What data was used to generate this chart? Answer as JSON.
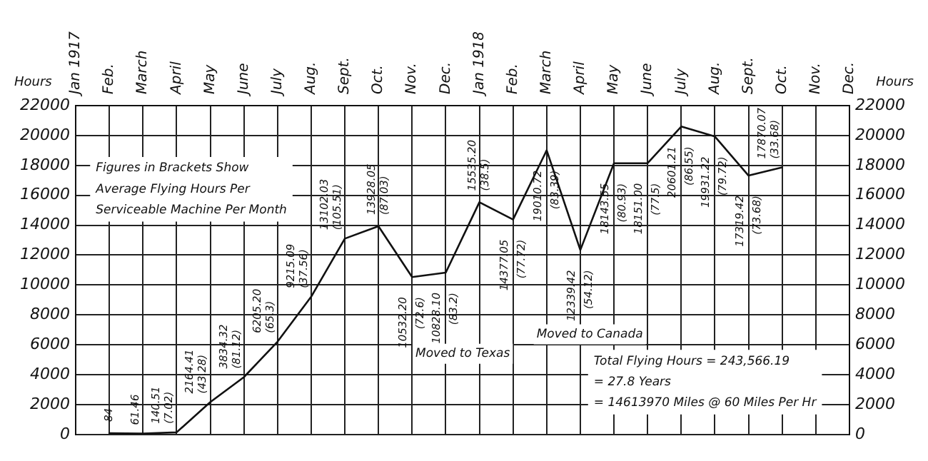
{
  "chart_data": {
    "type": "line",
    "ylabel": "Hours",
    "y2label": "Hours",
    "categories": [
      "Jan 1917",
      "Feb.",
      "March",
      "April",
      "May",
      "June",
      "July",
      "Aug.",
      "Sept.",
      "Oct.",
      "Nov.",
      "Dec.",
      "Jan 1918",
      "Feb.",
      "March",
      "April",
      "May",
      "June",
      "July",
      "Aug.",
      "Sept.",
      "Oct.",
      "Nov.",
      "Dec."
    ],
    "series": [
      {
        "color": "#111111",
        "values": [
          null,
          84,
          61.46,
          140.51,
          2164.41,
          3834.32,
          6205.2,
          9215.09,
          13102.03,
          13928.05,
          10532.2,
          10828.1,
          15535.2,
          14377.05,
          19010.72,
          12339.42,
          18143.55,
          18151.0,
          20601.21,
          19931.22,
          17319.42,
          17870.07,
          null,
          null
        ],
        "value_labels": [
          null,
          "84",
          "61.46",
          "140.51\n(7.02)",
          "2164.41\n(43.28)",
          "3834.32\n(81.12)",
          "6205.20\n(65.3)",
          "9215.09\n(37.56)",
          "13102.03\n(105.51)",
          "13928.05\n(87.03)",
          "10532.20\n(72.6)",
          "10828.10\n(83.2)",
          "15535.20\n(38.5)",
          "14377.05\n(77.72)",
          "19010.72\n(83.39)",
          "12339.42\n(54.12)",
          "18143.55\n(80.93)",
          "18151.00\n(77.5)",
          "20601.21\n(86.55)",
          "19931.22\n(79.72)",
          "17319.42\n(73.68)",
          "17870.07\n(33.68)",
          null,
          null
        ]
      }
    ],
    "ylim": [
      0,
      22000
    ],
    "yticks": [
      0,
      2000,
      4000,
      6000,
      8000,
      10000,
      12000,
      14000,
      16000,
      18000,
      20000,
      22000
    ],
    "y2lim": [
      0,
      22000
    ],
    "y2ticks": [
      0,
      2000,
      4000,
      6000,
      8000,
      10000,
      12000,
      14000,
      16000,
      18000,
      20000,
      22000
    ],
    "grid": true,
    "legend": false,
    "marker": "none",
    "line_style": "solid",
    "annotations": [
      "Figures in Brackets Show",
      "Average Flying Hours Per",
      "Serviceable Machine Per Month",
      "Moved to Texas",
      "Moved to Canada",
      "Total Flying Hours = 243,566.19",
      "= 27.8 Years",
      "= 14613970 Miles @ 60 Miles Per Hr"
    ]
  }
}
